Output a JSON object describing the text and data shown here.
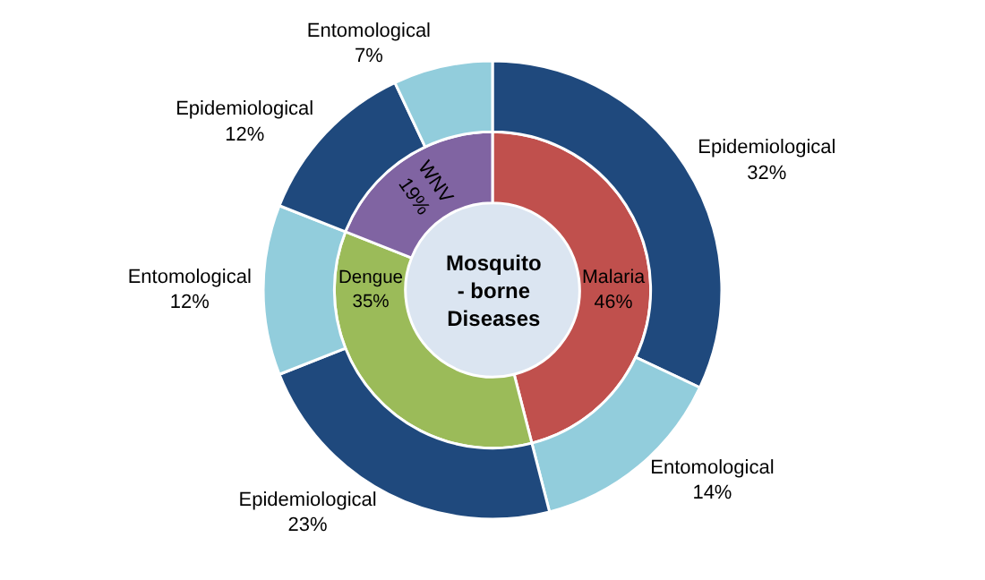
{
  "chart_data": [
    {
      "type": "donut",
      "legend": false,
      "annotations": [
        "Mosquito\n- borne\nDiseases"
      ],
      "categories": [
        "Malaria",
        "Dengue",
        "WNV"
      ],
      "values": [
        46,
        35,
        19
      ],
      "value_labels": [
        "46%",
        "35%",
        "19%"
      ],
      "colors": [
        "#c0504d",
        "#9bbb59",
        "#8064a2"
      ]
    },
    {
      "type": "donut",
      "legend": false,
      "categories": [
        "Epidemiological",
        "Entomological",
        "Epidemiological",
        "Entomological",
        "Epidemiological",
        "Entomological"
      ],
      "values": [
        32,
        14,
        23,
        12,
        12,
        7
      ],
      "value_labels": [
        "32%",
        "14%",
        "23%",
        "12%",
        "12%",
        "7%"
      ],
      "colors": [
        "#1f497d",
        "#92cddc",
        "#1f497d",
        "#92cddc",
        "#1f497d",
        "#92cddc"
      ]
    }
  ]
}
